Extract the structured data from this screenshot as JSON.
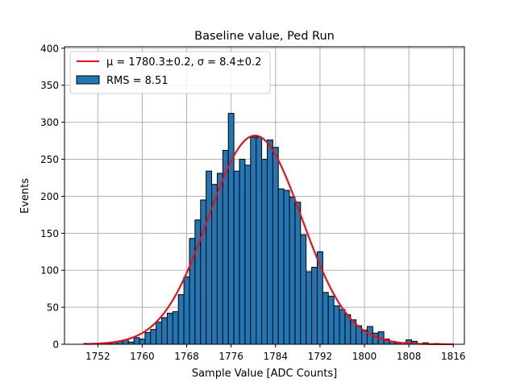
{
  "chart_data": {
    "type": "bar",
    "title": "Baseline value, Ped Run",
    "xlabel": "Sample Value [ADC Counts]",
    "ylabel": "Events",
    "xlim": [
      1746,
      1818
    ],
    "ylim": [
      0,
      402
    ],
    "xticks": [
      1752,
      1760,
      1768,
      1776,
      1784,
      1792,
      1800,
      1808,
      1816
    ],
    "yticks": [
      0,
      50,
      100,
      150,
      200,
      250,
      300,
      350,
      400
    ],
    "grid": true,
    "bin_width": 1,
    "bins": [
      {
        "x": 1750,
        "v": 1
      },
      {
        "x": 1751,
        "v": 0
      },
      {
        "x": 1752,
        "v": 0
      },
      {
        "x": 1753,
        "v": 0
      },
      {
        "x": 1754,
        "v": 1
      },
      {
        "x": 1755,
        "v": 3
      },
      {
        "x": 1756,
        "v": 4
      },
      {
        "x": 1757,
        "v": 6
      },
      {
        "x": 1758,
        "v": 3
      },
      {
        "x": 1759,
        "v": 9
      },
      {
        "x": 1760,
        "v": 7
      },
      {
        "x": 1761,
        "v": 16
      },
      {
        "x": 1762,
        "v": 20
      },
      {
        "x": 1763,
        "v": 30
      },
      {
        "x": 1764,
        "v": 36
      },
      {
        "x": 1765,
        "v": 42
      },
      {
        "x": 1766,
        "v": 44
      },
      {
        "x": 1767,
        "v": 67
      },
      {
        "x": 1768,
        "v": 91
      },
      {
        "x": 1769,
        "v": 143
      },
      {
        "x": 1770,
        "v": 168
      },
      {
        "x": 1771,
        "v": 195
      },
      {
        "x": 1772,
        "v": 234
      },
      {
        "x": 1773,
        "v": 216
      },
      {
        "x": 1774,
        "v": 231
      },
      {
        "x": 1775,
        "v": 262
      },
      {
        "x": 1776,
        "v": 312
      },
      {
        "x": 1777,
        "v": 234
      },
      {
        "x": 1778,
        "v": 250
      },
      {
        "x": 1779,
        "v": 242
      },
      {
        "x": 1780,
        "v": 280
      },
      {
        "x": 1781,
        "v": 280
      },
      {
        "x": 1782,
        "v": 250
      },
      {
        "x": 1783,
        "v": 276
      },
      {
        "x": 1784,
        "v": 266
      },
      {
        "x": 1785,
        "v": 210
      },
      {
        "x": 1786,
        "v": 208
      },
      {
        "x": 1787,
        "v": 199
      },
      {
        "x": 1788,
        "v": 192
      },
      {
        "x": 1789,
        "v": 148
      },
      {
        "x": 1790,
        "v": 98
      },
      {
        "x": 1791,
        "v": 104
      },
      {
        "x": 1792,
        "v": 125
      },
      {
        "x": 1793,
        "v": 70
      },
      {
        "x": 1794,
        "v": 65
      },
      {
        "x": 1795,
        "v": 52
      },
      {
        "x": 1796,
        "v": 47
      },
      {
        "x": 1797,
        "v": 40
      },
      {
        "x": 1798,
        "v": 33
      },
      {
        "x": 1799,
        "v": 25
      },
      {
        "x": 1800,
        "v": 19
      },
      {
        "x": 1801,
        "v": 24
      },
      {
        "x": 1802,
        "v": 15
      },
      {
        "x": 1803,
        "v": 17
      },
      {
        "x": 1804,
        "v": 7
      },
      {
        "x": 1805,
        "v": 4
      },
      {
        "x": 1806,
        "v": 2
      },
      {
        "x": 1807,
        "v": 0
      },
      {
        "x": 1808,
        "v": 6
      },
      {
        "x": 1809,
        "v": 4
      },
      {
        "x": 1810,
        "v": 0
      },
      {
        "x": 1811,
        "v": 2
      },
      {
        "x": 1812,
        "v": 0
      },
      {
        "x": 1813,
        "v": 1
      },
      {
        "x": 1814,
        "v": 0
      },
      {
        "x": 1815,
        "v": 0
      },
      {
        "x": 1816,
        "v": 0
      }
    ],
    "fit": {
      "mu": 1780.3,
      "sigma": 8.4,
      "amplitude": 282,
      "x_range": [
        1750,
        1816
      ]
    },
    "legend": {
      "placement": "upper-left",
      "entries": [
        {
          "type": "line",
          "label": "μ = 1780.3±0.2, σ = 8.4±0.2"
        },
        {
          "type": "bar",
          "label": "RMS = 8.51"
        }
      ]
    },
    "colors": {
      "bar_fill": "#1f77b4",
      "bar_edge": "#000000",
      "fit_line": "#e8111b",
      "grid": "#b0b0b0",
      "axes": "#000000"
    }
  }
}
